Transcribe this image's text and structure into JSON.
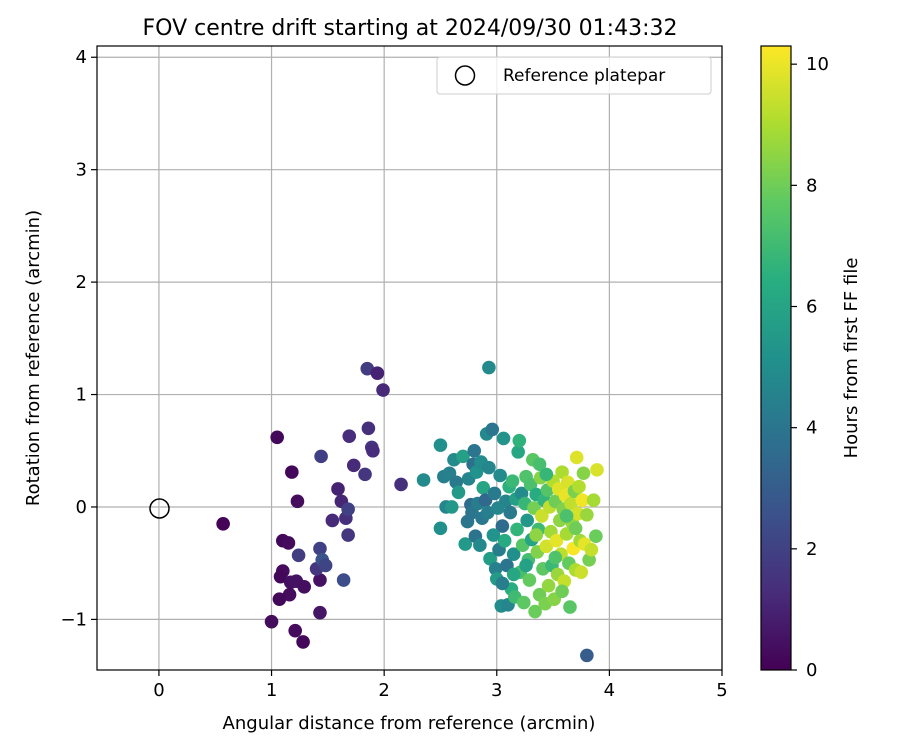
{
  "chart_data": {
    "type": "scatter",
    "title": "FOV centre drift starting at 2024/09/30 01:43:32",
    "xlabel": "Angular distance from reference (arcmin)",
    "ylabel": "Rotation from reference (arcmin)",
    "xlim": [
      -0.55,
      5.0
    ],
    "ylim": [
      -1.45,
      4.1
    ],
    "xticks": [
      0,
      1,
      2,
      3,
      4,
      5
    ],
    "yticks": [
      -1,
      0,
      1,
      2,
      3,
      4
    ],
    "xtick_labels": [
      "0",
      "1",
      "2",
      "3",
      "4",
      "5"
    ],
    "ytick_labels": [
      "−1",
      "0",
      "1",
      "2",
      "3",
      "4"
    ],
    "grid": true,
    "legend": {
      "position": "top-right",
      "entries": [
        {
          "label": "Reference platepar",
          "marker": "open-circle"
        }
      ]
    },
    "reference_point": {
      "x": 0,
      "y": 0
    },
    "colorbar": {
      "label": "Hours from first FF file",
      "colormap": "viridis",
      "range": [
        0,
        10.3
      ],
      "ticks": [
        0,
        2,
        4,
        6,
        8,
        10
      ],
      "tick_labels": [
        "0",
        "2",
        "4",
        "6",
        "8",
        "10"
      ]
    },
    "points": [
      {
        "x": 0.57,
        "y": -0.15,
        "c": 0.1
      },
      {
        "x": 1.05,
        "y": 0.62,
        "c": 0.2
      },
      {
        "x": 1.18,
        "y": 0.31,
        "c": 0.2
      },
      {
        "x": 1.23,
        "y": 0.05,
        "c": 0.3
      },
      {
        "x": 1.1,
        "y": -0.3,
        "c": 0.2
      },
      {
        "x": 1.15,
        "y": -0.32,
        "c": 0.3
      },
      {
        "x": 1.1,
        "y": -0.57,
        "c": 0.3
      },
      {
        "x": 1.08,
        "y": -0.62,
        "c": 0.2
      },
      {
        "x": 1.17,
        "y": -0.67,
        "c": 0.4
      },
      {
        "x": 1.22,
        "y": -0.66,
        "c": 0.5
      },
      {
        "x": 1.29,
        "y": -0.71,
        "c": 0.4
      },
      {
        "x": 1.16,
        "y": -0.78,
        "c": 0.3
      },
      {
        "x": 1.07,
        "y": -0.82,
        "c": 0.2
      },
      {
        "x": 1.0,
        "y": -1.02,
        "c": 0.3
      },
      {
        "x": 1.21,
        "y": -1.1,
        "c": 0.3
      },
      {
        "x": 1.28,
        "y": -1.2,
        "c": 0.2
      },
      {
        "x": 1.43,
        "y": -0.65,
        "c": 0.5
      },
      {
        "x": 1.43,
        "y": -0.94,
        "c": 0.6
      },
      {
        "x": 1.24,
        "y": -0.43,
        "c": 1.8
      },
      {
        "x": 1.4,
        "y": -0.55,
        "c": 1.6
      },
      {
        "x": 1.43,
        "y": -0.37,
        "c": 2.0
      },
      {
        "x": 1.45,
        "y": -0.47,
        "c": 2.6
      },
      {
        "x": 1.48,
        "y": -0.52,
        "c": 2.1
      },
      {
        "x": 1.44,
        "y": 0.45,
        "c": 1.9
      },
      {
        "x": 1.54,
        "y": -0.12,
        "c": 1.2
      },
      {
        "x": 1.59,
        "y": 0.16,
        "c": 1.0
      },
      {
        "x": 1.62,
        "y": 0.05,
        "c": 1.1
      },
      {
        "x": 1.66,
        "y": -0.1,
        "c": 1.4
      },
      {
        "x": 1.68,
        "y": -0.02,
        "c": 2.0
      },
      {
        "x": 1.68,
        "y": -0.25,
        "c": 1.6
      },
      {
        "x": 1.64,
        "y": -0.65,
        "c": 2.4
      },
      {
        "x": 1.69,
        "y": 0.63,
        "c": 1.3
      },
      {
        "x": 1.73,
        "y": 0.37,
        "c": 1.2
      },
      {
        "x": 1.83,
        "y": 0.29,
        "c": 1.6
      },
      {
        "x": 1.86,
        "y": 0.7,
        "c": 1.4
      },
      {
        "x": 1.89,
        "y": 0.53,
        "c": 1.5
      },
      {
        "x": 1.9,
        "y": 0.5,
        "c": 1.3
      },
      {
        "x": 1.85,
        "y": 1.23,
        "c": 1.8
      },
      {
        "x": 1.94,
        "y": 1.19,
        "c": 1.0
      },
      {
        "x": 1.99,
        "y": 1.04,
        "c": 1.2
      },
      {
        "x": 2.15,
        "y": 0.2,
        "c": 1.4
      },
      {
        "x": 2.35,
        "y": 0.24,
        "c": 4.9
      },
      {
        "x": 2.5,
        "y": 0.55,
        "c": 5.1
      },
      {
        "x": 2.5,
        "y": -0.19,
        "c": 5.1
      },
      {
        "x": 2.53,
        "y": 0.27,
        "c": 4.4
      },
      {
        "x": 2.55,
        "y": 0.0,
        "c": 4.6
      },
      {
        "x": 2.58,
        "y": 0.3,
        "c": 4.5
      },
      {
        "x": 2.6,
        "y": 0.0,
        "c": 5.4
      },
      {
        "x": 2.62,
        "y": 0.42,
        "c": 4.9
      },
      {
        "x": 2.64,
        "y": 0.22,
        "c": 4.2
      },
      {
        "x": 2.66,
        "y": 0.13,
        "c": 5.5
      },
      {
        "x": 2.7,
        "y": 0.45,
        "c": 5.8
      },
      {
        "x": 2.72,
        "y": -0.33,
        "c": 5.5
      },
      {
        "x": 2.74,
        "y": -0.13,
        "c": 4.0
      },
      {
        "x": 2.75,
        "y": 0.25,
        "c": 4.6
      },
      {
        "x": 2.77,
        "y": 0.02,
        "c": 3.6
      },
      {
        "x": 2.78,
        "y": -0.05,
        "c": 4.0
      },
      {
        "x": 2.79,
        "y": 0.38,
        "c": 3.8
      },
      {
        "x": 2.8,
        "y": 0.5,
        "c": 4.0
      },
      {
        "x": 2.81,
        "y": -0.26,
        "c": 3.9
      },
      {
        "x": 2.82,
        "y": 0.31,
        "c": 5.2
      },
      {
        "x": 2.83,
        "y": 0.03,
        "c": 4.3
      },
      {
        "x": 2.85,
        "y": -0.34,
        "c": 4.8
      },
      {
        "x": 2.86,
        "y": 0.4,
        "c": 5.0
      },
      {
        "x": 2.87,
        "y": -0.1,
        "c": 4.1
      },
      {
        "x": 2.88,
        "y": 0.17,
        "c": 6.0
      },
      {
        "x": 2.9,
        "y": 0.06,
        "c": 3.5
      },
      {
        "x": 2.91,
        "y": 0.65,
        "c": 4.8
      },
      {
        "x": 2.92,
        "y": -0.05,
        "c": 4.4
      },
      {
        "x": 2.93,
        "y": 1.24,
        "c": 4.9
      },
      {
        "x": 2.94,
        "y": -0.46,
        "c": 5.7
      },
      {
        "x": 2.96,
        "y": 0.69,
        "c": 4.0
      },
      {
        "x": 2.98,
        "y": 0.12,
        "c": 4.2
      },
      {
        "x": 2.99,
        "y": -0.55,
        "c": 4.5
      },
      {
        "x": 3.0,
        "y": -0.64,
        "c": 5.6
      },
      {
        "x": 3.01,
        "y": -0.01,
        "c": 4.7
      },
      {
        "x": 3.02,
        "y": -0.38,
        "c": 4.3
      },
      {
        "x": 3.03,
        "y": 0.28,
        "c": 4.9
      },
      {
        "x": 3.04,
        "y": -0.88,
        "c": 5.0
      },
      {
        "x": 3.05,
        "y": -0.17,
        "c": 3.6
      },
      {
        "x": 3.06,
        "y": 0.61,
        "c": 5.3
      },
      {
        "x": 3.07,
        "y": -0.3,
        "c": 6.2
      },
      {
        "x": 3.08,
        "y": 0.05,
        "c": 4.6
      },
      {
        "x": 3.09,
        "y": -0.52,
        "c": 4.0
      },
      {
        "x": 3.1,
        "y": -0.87,
        "c": 4.7
      },
      {
        "x": 3.11,
        "y": 0.18,
        "c": 6.5
      },
      {
        "x": 3.12,
        "y": -0.05,
        "c": 4.2
      },
      {
        "x": 3.13,
        "y": -0.73,
        "c": 6.4
      },
      {
        "x": 3.14,
        "y": 0.23,
        "c": 6.9
      },
      {
        "x": 3.15,
        "y": -0.42,
        "c": 5.1
      },
      {
        "x": 3.16,
        "y": -0.8,
        "c": 7.0
      },
      {
        "x": 3.17,
        "y": 0.07,
        "c": 5.8
      },
      {
        "x": 3.18,
        "y": -0.2,
        "c": 6.7
      },
      {
        "x": 3.19,
        "y": 0.49,
        "c": 6.1
      },
      {
        "x": 3.2,
        "y": 0.59,
        "c": 6.6
      },
      {
        "x": 3.21,
        "y": -0.58,
        "c": 7.2
      },
      {
        "x": 3.22,
        "y": 0.12,
        "c": 4.9
      },
      {
        "x": 3.23,
        "y": -0.34,
        "c": 7.5
      },
      {
        "x": 3.24,
        "y": -0.85,
        "c": 7.7
      },
      {
        "x": 3.25,
        "y": 0.03,
        "c": 6.8
      },
      {
        "x": 3.26,
        "y": 0.27,
        "c": 7.4
      },
      {
        "x": 3.27,
        "y": -0.12,
        "c": 5.4
      },
      {
        "x": 3.28,
        "y": -0.47,
        "c": 7.1
      },
      {
        "x": 3.29,
        "y": -0.65,
        "c": 7.8
      },
      {
        "x": 3.3,
        "y": 0.2,
        "c": 7.3
      },
      {
        "x": 3.31,
        "y": -0.29,
        "c": 6.0
      },
      {
        "x": 3.32,
        "y": 0.42,
        "c": 7.6
      },
      {
        "x": 3.33,
        "y": -0.01,
        "c": 8.1
      },
      {
        "x": 3.34,
        "y": -0.93,
        "c": 7.9
      },
      {
        "x": 3.35,
        "y": 0.11,
        "c": 6.3
      },
      {
        "x": 3.36,
        "y": -0.4,
        "c": 8.3
      },
      {
        "x": 3.37,
        "y": -0.2,
        "c": 7.0
      },
      {
        "x": 3.38,
        "y": -0.78,
        "c": 8.0
      },
      {
        "x": 3.39,
        "y": 0.26,
        "c": 8.4
      },
      {
        "x": 3.4,
        "y": -0.08,
        "c": 9.5
      },
      {
        "x": 3.41,
        "y": -0.55,
        "c": 7.7
      },
      {
        "x": 3.42,
        "y": 0.06,
        "c": 6.7
      },
      {
        "x": 3.43,
        "y": -0.86,
        "c": 8.2
      },
      {
        "x": 3.44,
        "y": -0.35,
        "c": 9.6
      },
      {
        "x": 3.45,
        "y": 0.15,
        "c": 7.5
      },
      {
        "x": 3.46,
        "y": -0.7,
        "c": 8.6
      },
      {
        "x": 3.47,
        "y": 0.0,
        "c": 9.3
      },
      {
        "x": 3.48,
        "y": -0.22,
        "c": 8.8
      },
      {
        "x": 3.49,
        "y": -0.52,
        "c": 6.9
      },
      {
        "x": 3.5,
        "y": 0.23,
        "c": 9.1
      },
      {
        "x": 3.51,
        "y": -0.82,
        "c": 8.4
      },
      {
        "x": 3.52,
        "y": 0.05,
        "c": 8.0
      },
      {
        "x": 3.53,
        "y": -0.3,
        "c": 9.9
      },
      {
        "x": 3.54,
        "y": -0.6,
        "c": 8.7
      },
      {
        "x": 3.55,
        "y": 0.16,
        "c": 9.8
      },
      {
        "x": 3.56,
        "y": -0.12,
        "c": 8.5
      },
      {
        "x": 3.57,
        "y": -0.42,
        "c": 9.2
      },
      {
        "x": 3.58,
        "y": 0.31,
        "c": 9.0
      },
      {
        "x": 3.59,
        "y": -0.02,
        "c": 8.3
      },
      {
        "x": 3.6,
        "y": -0.66,
        "c": 9.4
      },
      {
        "x": 3.61,
        "y": 0.1,
        "c": 10.0
      },
      {
        "x": 3.62,
        "y": -0.24,
        "c": 8.9
      },
      {
        "x": 3.63,
        "y": 0.22,
        "c": 9.7
      },
      {
        "x": 3.64,
        "y": -0.5,
        "c": 7.8
      },
      {
        "x": 3.65,
        "y": -0.89,
        "c": 7.6
      },
      {
        "x": 3.66,
        "y": 0.03,
        "c": 9.3
      },
      {
        "x": 3.67,
        "y": -0.14,
        "c": 8.6
      },
      {
        "x": 3.68,
        "y": -0.37,
        "c": 10.2
      },
      {
        "x": 3.69,
        "y": 0.14,
        "c": 8.2
      },
      {
        "x": 3.7,
        "y": -0.56,
        "c": 9.0
      },
      {
        "x": 3.71,
        "y": 0.44,
        "c": 9.8
      },
      {
        "x": 3.72,
        "y": -0.06,
        "c": 9.6
      },
      {
        "x": 3.73,
        "y": 0.18,
        "c": 9.1
      },
      {
        "x": 3.74,
        "y": -0.3,
        "c": 8.8
      },
      {
        "x": 3.75,
        "y": -0.58,
        "c": 9.5
      },
      {
        "x": 3.76,
        "y": 0.06,
        "c": 10.1
      },
      {
        "x": 3.77,
        "y": 0.3,
        "c": 8.4
      },
      {
        "x": 3.78,
        "y": -0.33,
        "c": 9.9
      },
      {
        "x": 3.8,
        "y": -1.32,
        "c": 3.0
      },
      {
        "x": 3.8,
        "y": -0.07,
        "c": 8.7
      },
      {
        "x": 3.82,
        "y": -0.47,
        "c": 8.1
      },
      {
        "x": 3.84,
        "y": -0.38,
        "c": 9.4
      },
      {
        "x": 3.86,
        "y": 0.06,
        "c": 8.9
      },
      {
        "x": 3.88,
        "y": -0.26,
        "c": 7.9
      },
      {
        "x": 3.89,
        "y": 0.33,
        "c": 9.7
      },
      {
        "x": 3.58,
        "y": -0.75,
        "c": 8.0
      },
      {
        "x": 3.38,
        "y": 0.38,
        "c": 7.2
      },
      {
        "x": 3.44,
        "y": 0.29,
        "c": 6.8
      },
      {
        "x": 3.15,
        "y": -0.6,
        "c": 6.1
      },
      {
        "x": 2.97,
        "y": -0.25,
        "c": 5.3
      },
      {
        "x": 3.05,
        "y": -0.68,
        "c": 4.4
      },
      {
        "x": 2.93,
        "y": 0.35,
        "c": 4.7
      },
      {
        "x": 3.26,
        "y": -0.52,
        "c": 5.9
      },
      {
        "x": 3.52,
        "y": -0.45,
        "c": 7.4
      },
      {
        "x": 3.35,
        "y": -0.25,
        "c": 8.5
      },
      {
        "x": 3.62,
        "y": -0.08,
        "c": 7.3
      },
      {
        "x": 3.7,
        "y": -0.19,
        "c": 8.0
      }
    ]
  }
}
